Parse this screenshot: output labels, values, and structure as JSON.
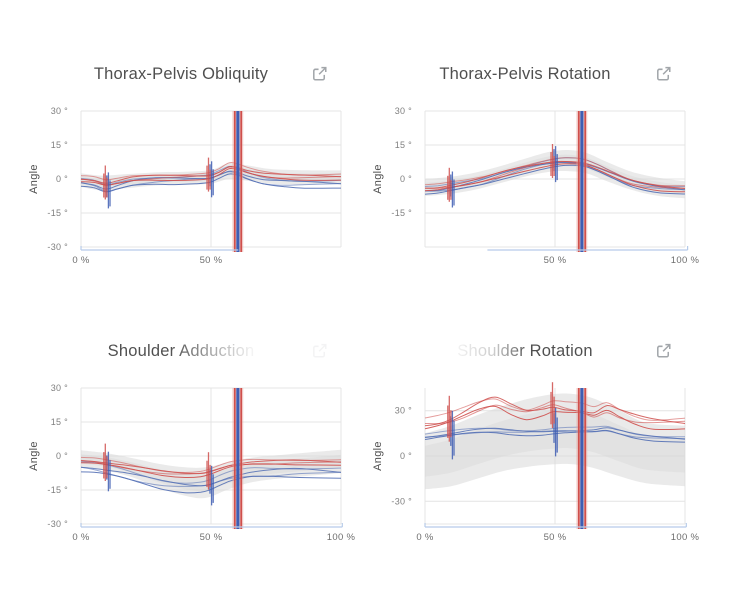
{
  "colors": {
    "red": "#cf4f4c",
    "blue": "#5470b5",
    "event_blue": "#3e5db3",
    "halo": "#e9a49e",
    "band_gray": "#d8d8d8",
    "grid": "#e4e4e4",
    "axis_blue": "#b6cbe9",
    "title": "#4f4f4f",
    "tick": "#7f7f7f",
    "icon": "#a2a6aa"
  },
  "chart_data": [
    {
      "type": "line",
      "title": "Thorax-Pelvis Obliquity",
      "ylabel": "Angle",
      "ylim": [
        -30,
        30
      ],
      "title_fade": "none",
      "icon": {
        "name": "external-link",
        "opacity": 1
      },
      "y_ticks": [
        {
          "label": "30 °",
          "value": 30
        },
        {
          "label": "15 °",
          "value": 15
        },
        {
          "label": "0 °",
          "value": 0
        },
        {
          "label": "-15 °",
          "value": -15
        },
        {
          "label": "-30 °",
          "value": -30
        }
      ],
      "x_ticks": [
        {
          "label": "0 %",
          "value": 0,
          "shown": true
        },
        {
          "label": "50 %",
          "value": 50,
          "shown": true
        },
        {
          "label": "100 %",
          "value": 100,
          "shown": false
        }
      ],
      "axis_segment": [
        0,
        60.5
      ],
      "normative_band": {
        "x": [
          0,
          8,
          18,
          30,
          40,
          50,
          57,
          64,
          72,
          80,
          90,
          100
        ],
        "top": [
          2.5,
          1.5,
          2.2,
          3.0,
          3.2,
          4.0,
          7.0,
          6.0,
          4.5,
          4.0,
          3.8,
          3.8
        ],
        "bottom": [
          -3.5,
          -5.0,
          -4.0,
          -2.8,
          -2.6,
          -2.0,
          0.0,
          -0.8,
          -2.0,
          -2.4,
          -2.3,
          -2.2
        ]
      },
      "series": [
        {
          "name": "left-trials",
          "color": "blue",
          "x": [
            0,
            5,
            9.6,
            14,
            20,
            28,
            36,
            44,
            49.3,
            53,
            57,
            60.3,
            64,
            70,
            78,
            86,
            100
          ],
          "y": [
            -1.6,
            -2.6,
            -4.6,
            -3.4,
            -1.6,
            -0.6,
            -0.3,
            0.0,
            0.3,
            1.8,
            3.5,
            2.8,
            1.0,
            -1.0,
            -1.8,
            -2.0,
            -2.1
          ],
          "offsets": [
            -1.6,
            -0.5,
            0.5,
            1.5
          ],
          "wobble": 0.6
        },
        {
          "name": "right-trials",
          "color": "red",
          "x": [
            0,
            5,
            9.6,
            14,
            20,
            28,
            36,
            44,
            49.3,
            53,
            57,
            60.3,
            64,
            70,
            78,
            86,
            100
          ],
          "y": [
            0.0,
            -0.6,
            -2.0,
            -1.2,
            0.2,
            0.8,
            1.0,
            1.2,
            1.5,
            3.0,
            5.5,
            5.0,
            3.5,
            2.0,
            1.2,
            1.0,
            1.0
          ],
          "offsets": [
            -1.2,
            -0.4,
            0.4,
            1.2
          ],
          "wobble": 0.5
        }
      ],
      "events": {
        "trial_marks": [
          9.6,
          49.3
        ],
        "cycle_mark": 60.3
      },
      "event_scale": 1
    },
    {
      "type": "line",
      "title": "Thorax-Pelvis Rotation",
      "ylabel": "Angle",
      "ylim": [
        -30,
        30
      ],
      "title_fade": "none",
      "icon": {
        "name": "external-link",
        "opacity": 1
      },
      "y_ticks": [
        {
          "label": "30 °",
          "value": 30
        },
        {
          "label": "15 °",
          "value": 15
        },
        {
          "label": "0 °",
          "value": 0
        },
        {
          "label": "-15 °",
          "value": -15
        }
      ],
      "x_ticks": [
        {
          "label": "0 %",
          "value": 0,
          "shown": false
        },
        {
          "label": "50 %",
          "value": 50,
          "shown": true
        },
        {
          "label": "100 %",
          "value": 100,
          "shown": true
        }
      ],
      "axis_segment": [
        24,
        101
      ],
      "normative_band": {
        "x": [
          0,
          10,
          20,
          30,
          40,
          48,
          55,
          62,
          70,
          80,
          90,
          100
        ],
        "top": [
          0.0,
          1.0,
          3.0,
          6.0,
          9.5,
          12.0,
          12.8,
          11.5,
          7.5,
          3.0,
          0.5,
          -1.0
        ],
        "bottom": [
          -7.5,
          -6.5,
          -4.5,
          -1.5,
          1.5,
          3.2,
          3.5,
          2.5,
          -1.0,
          -5.0,
          -7.5,
          -8.5
        ]
      },
      "series": [
        {
          "name": "left-trials",
          "color": "blue",
          "x": [
            0,
            5,
            9.6,
            15,
            22,
            30,
            38,
            44,
            49.3,
            54,
            60.3,
            66,
            72,
            80,
            90,
            100
          ],
          "y": [
            -5.2,
            -5.0,
            -4.2,
            -3.0,
            -1.2,
            1.7,
            4.4,
            6.0,
            7.0,
            7.4,
            6.8,
            4.6,
            1.6,
            -2.0,
            -4.0,
            -4.8
          ],
          "offsets": [
            -1.5,
            -0.5,
            0.5,
            1.5
          ],
          "wobble": 0.6
        },
        {
          "name": "right-trials",
          "color": "red",
          "x": [
            0,
            5,
            9.6,
            15,
            22,
            30,
            38,
            44,
            49.3,
            54,
            60.3,
            66,
            72,
            80,
            90,
            100
          ],
          "y": [
            -4.0,
            -3.8,
            -3.0,
            -2.0,
            -0.2,
            2.5,
            5.0,
            6.5,
            7.5,
            7.8,
            7.2,
            5.0,
            2.0,
            -1.5,
            -3.5,
            -4.2
          ],
          "offsets": [
            -1.2,
            -0.4,
            0.4,
            1.2
          ],
          "wobble": 0.5
        }
      ],
      "events": {
        "trial_marks": [
          9.6,
          49.3
        ],
        "cycle_mark": 60.3
      },
      "event_scale": 1
    },
    {
      "type": "line",
      "title": "Shoulder Adduction",
      "ylabel": "Angle",
      "ylim": [
        -30,
        30
      ],
      "title_fade": "right",
      "icon": {
        "name": "external-link",
        "opacity": 0.12
      },
      "y_ticks": [
        {
          "label": "30 °",
          "value": 30
        },
        {
          "label": "15 °",
          "value": 15
        },
        {
          "label": "0 °",
          "value": 0
        },
        {
          "label": "-15 °",
          "value": -15
        },
        {
          "label": "-30 °",
          "value": -30
        }
      ],
      "x_ticks": [
        {
          "label": "0 %",
          "value": 0,
          "shown": true
        },
        {
          "label": "50 %",
          "value": 50,
          "shown": true
        },
        {
          "label": "100 %",
          "value": 100,
          "shown": true
        }
      ],
      "axis_segment": [
        0,
        100.5
      ],
      "normative_band": {
        "x": [
          0,
          10,
          20,
          30,
          40,
          48,
          56,
          64,
          72,
          80,
          90,
          100
        ],
        "top": [
          2.5,
          1.2,
          -1.0,
          -3.5,
          -5.0,
          -5.0,
          -3.0,
          -1.0,
          0.0,
          0.8,
          1.8,
          2.8
        ],
        "bottom": [
          -5.0,
          -6.5,
          -9.5,
          -14.0,
          -17.5,
          -18.5,
          -15.0,
          -12.0,
          -10.5,
          -9.5,
          -8.5,
          -7.5
        ]
      },
      "series": [
        {
          "name": "left-trials",
          "color": "blue",
          "x": [
            0,
            5,
            9.6,
            16,
            24,
            32,
            40,
            46,
            49.3,
            53,
            57,
            60.3,
            66,
            74,
            84,
            100
          ],
          "y": [
            -4.8,
            -5.4,
            -6.4,
            -8.0,
            -10.2,
            -12.2,
            -13.2,
            -13.2,
            -12.6,
            -11.0,
            -9.4,
            -8.6,
            -7.6,
            -7.2,
            -6.8,
            -7.2
          ],
          "offsets": [
            -2.2,
            -0.8,
            0.6,
            1.8
          ],
          "wobble": 0.8
        },
        {
          "name": "right-trials",
          "color": "red",
          "x": [
            0,
            5,
            9.6,
            16,
            24,
            32,
            40,
            46,
            49.3,
            53,
            57,
            60.3,
            66,
            74,
            84,
            100
          ],
          "y": [
            -2.0,
            -2.4,
            -3.2,
            -4.4,
            -6.0,
            -7.4,
            -8.0,
            -7.8,
            -7.0,
            -5.6,
            -4.2,
            -3.6,
            -3.0,
            -2.8,
            -2.6,
            -2.8
          ],
          "offsets": [
            -1.0,
            -0.3,
            0.4,
            1.1
          ],
          "wobble": 0.5
        }
      ],
      "events": {
        "trial_marks": [
          9.6,
          49.3
        ],
        "cycle_mark": 60.3
      },
      "event_scale": 1.1
    },
    {
      "type": "line",
      "title": "Shoulder Rotation",
      "ylabel": "Angle",
      "ylim": [
        -45,
        45
      ],
      "title_fade": "left",
      "icon": {
        "name": "external-link",
        "opacity": 1
      },
      "y_ticks": [
        {
          "label": "30 °",
          "value": 30
        },
        {
          "label": "0 °",
          "value": 0
        },
        {
          "label": "-30 °",
          "value": -30
        }
      ],
      "x_ticks": [
        {
          "label": "0 %",
          "value": 0,
          "shown": true
        },
        {
          "label": "50 %",
          "value": 50,
          "shown": true
        },
        {
          "label": "100 %",
          "value": 100,
          "shown": true
        }
      ],
      "axis_segment": [
        0,
        100.5
      ],
      "normative_band": {
        "x": [
          0,
          10,
          20,
          30,
          40,
          50,
          57,
          65,
          75,
          85,
          100
        ],
        "top": [
          15,
          20,
          27,
          33,
          38,
          41,
          41,
          38,
          30,
          22,
          20
        ],
        "bottom": [
          -22,
          -20,
          -15,
          -10,
          -7,
          -5.5,
          -5.5,
          -8,
          -13.5,
          -18,
          -20
        ]
      },
      "series": [
        {
          "name": "left-trials",
          "color": "blue",
          "x": [
            0,
            5,
            9.6,
            15,
            21,
            27,
            33,
            39,
            45,
            49.3,
            54,
            60.3,
            65,
            70,
            75,
            81,
            88,
            100
          ],
          "y": [
            12.5,
            13.5,
            14.5,
            15.8,
            16.8,
            17.0,
            16.2,
            15.8,
            16.0,
            16.5,
            16.8,
            16.8,
            17.0,
            17.8,
            15.8,
            13.5,
            12.2,
            11.2
          ],
          "offsets": [
            -1.6,
            -0.5,
            0.5,
            1.5
          ],
          "wobble": 0.8
        },
        {
          "name": "right-trials",
          "color": "red",
          "x": [
            0,
            5,
            9.6,
            15,
            21,
            27,
            33,
            39,
            45,
            49.3,
            54,
            60.3,
            65,
            70,
            75,
            81,
            88,
            100
          ],
          "y": [
            21,
            22,
            24,
            28,
            33,
            36,
            32,
            29,
            31,
            33,
            31.5,
            30,
            28,
            31.5,
            28,
            24.5,
            22.5,
            22
          ],
          "offsets": [
            -3.0,
            -1.0,
            1.0,
            3.0
          ],
          "wobble": 2.0
        }
      ],
      "events": {
        "trial_marks": [
          9.6,
          49.3
        ],
        "cycle_mark": 60.3
      },
      "event_scale": 1.35
    }
  ]
}
